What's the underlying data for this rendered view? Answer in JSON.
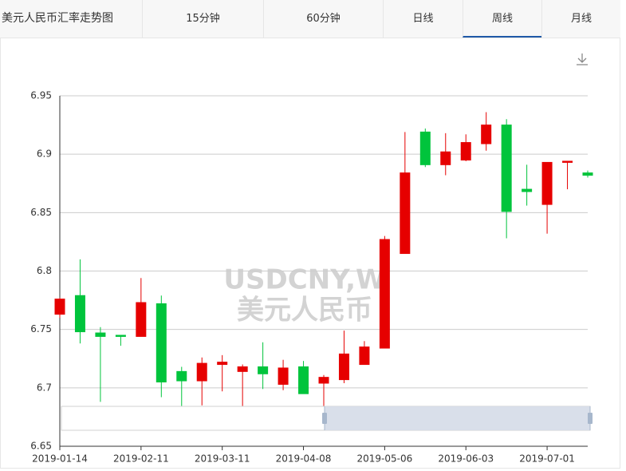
{
  "tabs": {
    "title": "美元人民币汇率走势图",
    "items": [
      "15分钟",
      "60分钟",
      "日线",
      "周线",
      "月线"
    ],
    "active": 3
  },
  "chart_data": {
    "type": "candlestick",
    "watermark": [
      "USDCNY,W",
      "美元人民币"
    ],
    "categories": [
      "2019-01-14",
      null,
      null,
      null,
      "2019-02-11",
      null,
      null,
      null,
      "2019-03-11",
      null,
      null,
      null,
      "2019-04-08",
      null,
      null,
      null,
      "2019-05-06",
      null,
      null,
      null,
      "2019-06-03",
      null,
      null,
      null,
      "2019-07-01",
      null,
      null
    ],
    "open": [
      6.763,
      6.779,
      6.747,
      6.745,
      6.744,
      6.772,
      6.714,
      6.706,
      6.72,
      6.714,
      6.718,
      6.703,
      6.718,
      6.704,
      6.707,
      6.72,
      6.734,
      6.815,
      6.919,
      6.891,
      6.895,
      6.909,
      6.925,
      6.87,
      6.857,
      6.893,
      6.884
    ],
    "high": [
      6.777,
      6.81,
      6.752,
      6.745,
      6.794,
      6.779,
      6.718,
      6.726,
      6.728,
      6.72,
      6.739,
      6.724,
      6.723,
      6.711,
      6.749,
      6.74,
      6.83,
      6.919,
      6.922,
      6.918,
      6.917,
      6.936,
      6.93,
      6.891,
      6.893,
      6.894,
      6.886
    ],
    "low": [
      6.76,
      6.738,
      6.688,
      6.736,
      6.744,
      6.692,
      6.669,
      6.685,
      6.697,
      6.665,
      6.699,
      6.698,
      6.695,
      6.679,
      6.704,
      6.72,
      6.734,
      6.815,
      6.889,
      6.882,
      6.894,
      6.903,
      6.828,
      6.856,
      6.832,
      6.87,
      6.88
    ],
    "close": [
      6.776,
      6.748,
      6.744,
      6.744,
      6.773,
      6.705,
      6.706,
      6.721,
      6.722,
      6.718,
      6.712,
      6.717,
      6.695,
      6.709,
      6.729,
      6.735,
      6.827,
      6.884,
      6.891,
      6.902,
      6.91,
      6.925,
      6.851,
      6.868,
      6.893,
      6.894,
      6.882
    ],
    "up_color": "#e60000",
    "down_color": "#00c43c",
    "ylim": [
      6.65,
      6.95
    ],
    "yticks": [
      6.65,
      6.7,
      6.75,
      6.8,
      6.85,
      6.9,
      6.95
    ],
    "grid": true
  }
}
